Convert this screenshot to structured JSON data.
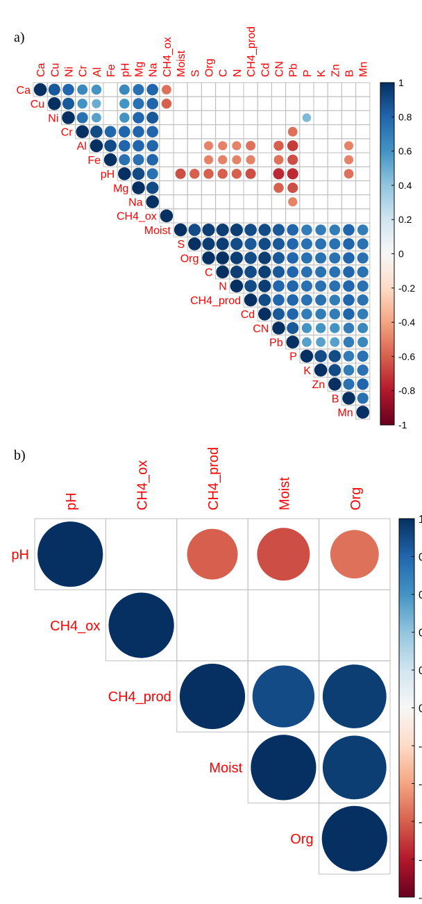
{
  "colors": {
    "neg1": "#67001f",
    "neg08": "#b2182b",
    "neg06": "#d6604d",
    "neg04": "#f4a582",
    "neg02": "#fddbc7",
    "zero": "#f7f7f7",
    "pos02": "#d1e5f0",
    "pos04": "#92c5de",
    "pos06": "#4393c3",
    "pos08": "#2166ac",
    "pos1": "#053061",
    "label_text": "#ff0000",
    "grid": "#bebebe"
  },
  "chart_data": [
    {
      "type": "heatmap",
      "panel_label": "a)",
      "layout": "upper-triangle",
      "glyph": "circle",
      "variables": [
        "Ca",
        "Cu",
        "Ni",
        "Cr",
        "Al",
        "Fe",
        "pH",
        "Mg",
        "Na",
        "CH4_ox",
        "Moist",
        "S",
        "Org",
        "C",
        "N",
        "CH4_prod",
        "Cd",
        "CN",
        "Pb",
        "P",
        "K",
        "Zn",
        "B",
        "Mn"
      ],
      "colorbar_ticks": [
        "1",
        "0.8",
        "0.6",
        "0.4",
        "0.2",
        "0",
        "-0.2",
        "-0.4",
        "-0.6",
        "-0.8",
        "-1"
      ],
      "colorbar_range": [
        -1,
        1
      ],
      "rows": [
        {
          "var": "Ca",
          "cells": [
            [
              "Ca",
              1
            ],
            [
              "Cu",
              0.85
            ],
            [
              "Ni",
              0.8
            ],
            [
              "Cr",
              0.65
            ],
            [
              "Al",
              0.6
            ],
            [
              "pH",
              0.65
            ],
            [
              "Mg",
              0.75
            ],
            [
              "Na",
              0.8
            ],
            [
              "CH4_ox",
              -0.55
            ]
          ]
        },
        {
          "var": "Cu",
          "cells": [
            [
              "Cu",
              1
            ],
            [
              "Ni",
              0.85
            ],
            [
              "Cr",
              0.6
            ],
            [
              "Al",
              0.5
            ],
            [
              "pH",
              0.6
            ],
            [
              "Mg",
              0.75
            ],
            [
              "Na",
              0.8
            ],
            [
              "CH4_ox",
              -0.6
            ]
          ]
        },
        {
          "var": "Ni",
          "cells": [
            [
              "Ni",
              1
            ],
            [
              "Cr",
              0.75
            ],
            [
              "Al",
              0.55
            ],
            [
              "pH",
              0.6
            ],
            [
              "Mg",
              0.8
            ],
            [
              "Na",
              0.85
            ],
            [
              "P",
              0.45
            ]
          ]
        },
        {
          "var": "Cr",
          "cells": [
            [
              "Cr",
              1
            ],
            [
              "Al",
              0.9
            ],
            [
              "Fe",
              0.8
            ],
            [
              "pH",
              0.8
            ],
            [
              "Mg",
              0.8
            ],
            [
              "Na",
              0.8
            ],
            [
              "Pb",
              -0.55
            ]
          ]
        },
        {
          "var": "Al",
          "cells": [
            [
              "Al",
              1
            ],
            [
              "Fe",
              0.9
            ],
            [
              "pH",
              0.8
            ],
            [
              "Mg",
              0.8
            ],
            [
              "Na",
              0.8
            ],
            [
              "Org",
              -0.5
            ],
            [
              "C",
              -0.5
            ],
            [
              "N",
              -0.5
            ],
            [
              "CH4_prod",
              -0.55
            ],
            [
              "CN",
              -0.6
            ],
            [
              "Pb",
              -0.7
            ],
            [
              "B",
              -0.5
            ]
          ]
        },
        {
          "var": "Fe",
          "cells": [
            [
              "Fe",
              1
            ],
            [
              "pH",
              0.75
            ],
            [
              "Mg",
              0.75
            ],
            [
              "Na",
              0.8
            ],
            [
              "Org",
              -0.5
            ],
            [
              "C",
              -0.5
            ],
            [
              "N",
              -0.5
            ],
            [
              "CH4_prod",
              -0.5
            ],
            [
              "CN",
              -0.55
            ],
            [
              "Pb",
              -0.65
            ],
            [
              "B",
              -0.5
            ]
          ]
        },
        {
          "var": "pH",
          "cells": [
            [
              "pH",
              1
            ],
            [
              "Mg",
              0.9
            ],
            [
              "Na",
              0.75
            ],
            [
              "Moist",
              -0.65
            ],
            [
              "S",
              -0.6
            ],
            [
              "Org",
              -0.6
            ],
            [
              "C",
              -0.6
            ],
            [
              "N",
              -0.6
            ],
            [
              "CH4_prod",
              -0.65
            ],
            [
              "CN",
              -0.75
            ],
            [
              "Pb",
              -0.75
            ],
            [
              "B",
              -0.55
            ]
          ]
        },
        {
          "var": "Mg",
          "cells": [
            [
              "Mg",
              1
            ],
            [
              "Na",
              0.9
            ],
            [
              "CN",
              -0.6
            ],
            [
              "Pb",
              -0.65
            ]
          ]
        },
        {
          "var": "Na",
          "cells": [
            [
              "Na",
              1
            ],
            [
              "Pb",
              -0.5
            ]
          ]
        },
        {
          "var": "CH4_ox",
          "cells": [
            [
              "CH4_ox",
              1
            ]
          ]
        },
        {
          "var": "Moist",
          "cells": [
            [
              "Moist",
              1
            ],
            [
              "S",
              0.9
            ],
            [
              "Org",
              0.95
            ],
            [
              "C",
              0.95
            ],
            [
              "N",
              0.95
            ],
            [
              "CH4_prod",
              0.9
            ],
            [
              "Cd",
              0.9
            ],
            [
              "CN",
              0.85
            ],
            [
              "Pb",
              0.8
            ],
            [
              "P",
              0.7
            ],
            [
              "K",
              0.7
            ],
            [
              "Zn",
              0.7
            ],
            [
              "B",
              0.8
            ],
            [
              "Mn",
              0.7
            ]
          ]
        },
        {
          "var": "S",
          "cells": [
            [
              "S",
              1
            ],
            [
              "Org",
              0.95
            ],
            [
              "C",
              0.95
            ],
            [
              "N",
              0.9
            ],
            [
              "CH4_prod",
              0.85
            ],
            [
              "Cd",
              0.9
            ],
            [
              "CN",
              0.85
            ],
            [
              "Pb",
              0.8
            ],
            [
              "P",
              0.75
            ],
            [
              "K",
              0.75
            ],
            [
              "Zn",
              0.75
            ],
            [
              "B",
              0.8
            ],
            [
              "Mn",
              0.75
            ]
          ]
        },
        {
          "var": "Org",
          "cells": [
            [
              "Org",
              1
            ],
            [
              "C",
              1
            ],
            [
              "N",
              0.95
            ],
            [
              "CH4_prod",
              0.9
            ],
            [
              "Cd",
              0.95
            ],
            [
              "CN",
              0.85
            ],
            [
              "Pb",
              0.8
            ],
            [
              "P",
              0.75
            ],
            [
              "K",
              0.75
            ],
            [
              "Zn",
              0.75
            ],
            [
              "B",
              0.8
            ],
            [
              "Mn",
              0.75
            ]
          ]
        },
        {
          "var": "C",
          "cells": [
            [
              "C",
              1
            ],
            [
              "N",
              0.95
            ],
            [
              "CH4_prod",
              0.9
            ],
            [
              "Cd",
              0.95
            ],
            [
              "CN",
              0.85
            ],
            [
              "Pb",
              0.8
            ],
            [
              "P",
              0.75
            ],
            [
              "K",
              0.75
            ],
            [
              "Zn",
              0.75
            ],
            [
              "B",
              0.8
            ],
            [
              "Mn",
              0.75
            ]
          ]
        },
        {
          "var": "N",
          "cells": [
            [
              "N",
              1
            ],
            [
              "CH4_prod",
              0.9
            ],
            [
              "Cd",
              0.95
            ],
            [
              "CN",
              0.8
            ],
            [
              "Pb",
              0.8
            ],
            [
              "P",
              0.75
            ],
            [
              "K",
              0.75
            ],
            [
              "Zn",
              0.75
            ],
            [
              "B",
              0.8
            ],
            [
              "Mn",
              0.75
            ]
          ]
        },
        {
          "var": "CH4_prod",
          "cells": [
            [
              "CH4_prod",
              1
            ],
            [
              "Cd",
              0.9
            ],
            [
              "CN",
              0.8
            ],
            [
              "Pb",
              0.8
            ],
            [
              "P",
              0.75
            ],
            [
              "K",
              0.75
            ],
            [
              "Zn",
              0.7
            ],
            [
              "B",
              0.8
            ],
            [
              "Mn",
              0.75
            ]
          ]
        },
        {
          "var": "Cd",
          "cells": [
            [
              "Cd",
              1
            ],
            [
              "CN",
              0.85
            ],
            [
              "Pb",
              0.8
            ],
            [
              "P",
              0.7
            ],
            [
              "K",
              0.7
            ],
            [
              "Zn",
              0.7
            ],
            [
              "B",
              0.8
            ],
            [
              "Mn",
              0.7
            ]
          ]
        },
        {
          "var": "CN",
          "cells": [
            [
              "CN",
              1
            ],
            [
              "Pb",
              0.85
            ],
            [
              "P",
              0.6
            ],
            [
              "K",
              0.6
            ],
            [
              "Zn",
              0.6
            ],
            [
              "B",
              0.7
            ],
            [
              "Mn",
              0.65
            ]
          ]
        },
        {
          "var": "Pb",
          "cells": [
            [
              "Pb",
              1
            ],
            [
              "P",
              0.55
            ],
            [
              "K",
              0.55
            ],
            [
              "Zn",
              0.55
            ],
            [
              "B",
              0.7
            ],
            [
              "Mn",
              0.65
            ]
          ]
        },
        {
          "var": "P",
          "cells": [
            [
              "P",
              1
            ],
            [
              "K",
              0.9
            ],
            [
              "Zn",
              0.9
            ],
            [
              "B",
              0.7
            ],
            [
              "Mn",
              0.75
            ]
          ]
        },
        {
          "var": "K",
          "cells": [
            [
              "K",
              1
            ],
            [
              "Zn",
              0.9
            ],
            [
              "B",
              0.7
            ],
            [
              "Mn",
              0.75
            ]
          ]
        },
        {
          "var": "Zn",
          "cells": [
            [
              "Zn",
              1
            ],
            [
              "B",
              0.75
            ],
            [
              "Mn",
              0.8
            ]
          ]
        },
        {
          "var": "B",
          "cells": [
            [
              "B",
              1
            ],
            [
              "Mn",
              0.75
            ]
          ]
        },
        {
          "var": "Mn",
          "cells": [
            [
              "Mn",
              1
            ]
          ]
        }
      ]
    },
    {
      "type": "heatmap",
      "panel_label": "b)",
      "layout": "upper-triangle",
      "glyph": "circle",
      "variables": [
        "pH",
        "CH4_ox",
        "CH4_prod",
        "Moist",
        "Org"
      ],
      "colorbar_range": [
        -1,
        1
      ],
      "rows": [
        {
          "var": "pH",
          "cells": [
            [
              "pH",
              1
            ],
            [
              "CH4_prod",
              -0.6
            ],
            [
              "Moist",
              -0.65
            ],
            [
              "Org",
              -0.55
            ]
          ]
        },
        {
          "var": "CH4_ox",
          "cells": [
            [
              "CH4_ox",
              1
            ]
          ]
        },
        {
          "var": "CH4_prod",
          "cells": [
            [
              "CH4_prod",
              1
            ],
            [
              "Moist",
              0.9
            ],
            [
              "Org",
              0.95
            ]
          ]
        },
        {
          "var": "Moist",
          "cells": [
            [
              "Moist",
              1
            ],
            [
              "Org",
              0.95
            ]
          ]
        },
        {
          "var": "Org",
          "cells": [
            [
              "Org",
              1
            ]
          ]
        }
      ]
    }
  ]
}
